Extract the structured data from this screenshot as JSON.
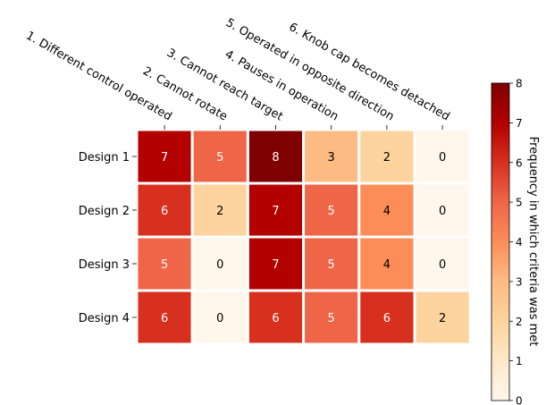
{
  "chart_data": {
    "type": "heatmap",
    "rows": [
      "Design 1",
      "Design 2",
      "Design 3",
      "Design 4"
    ],
    "columns": [
      "1. Different control operated",
      "2. Cannot rotate",
      "3. Cannot reach target",
      "4. Pauses in operation",
      "5. Operated in opposite direction",
      "6. Knob cap becomes detached"
    ],
    "values": [
      [
        7,
        5,
        8,
        3,
        2,
        0
      ],
      [
        6,
        2,
        7,
        5,
        4,
        0
      ],
      [
        5,
        0,
        7,
        5,
        4,
        0
      ],
      [
        6,
        0,
        6,
        5,
        6,
        2
      ]
    ],
    "colorbar": {
      "label": "Frequency in which criteria was met",
      "min": 0,
      "max": 8,
      "ticks": [
        0,
        1,
        2,
        3,
        4,
        5,
        6,
        7,
        8
      ],
      "colormap": "OrRd"
    },
    "column_labels_position": "top",
    "colorbar_placement": "right"
  }
}
